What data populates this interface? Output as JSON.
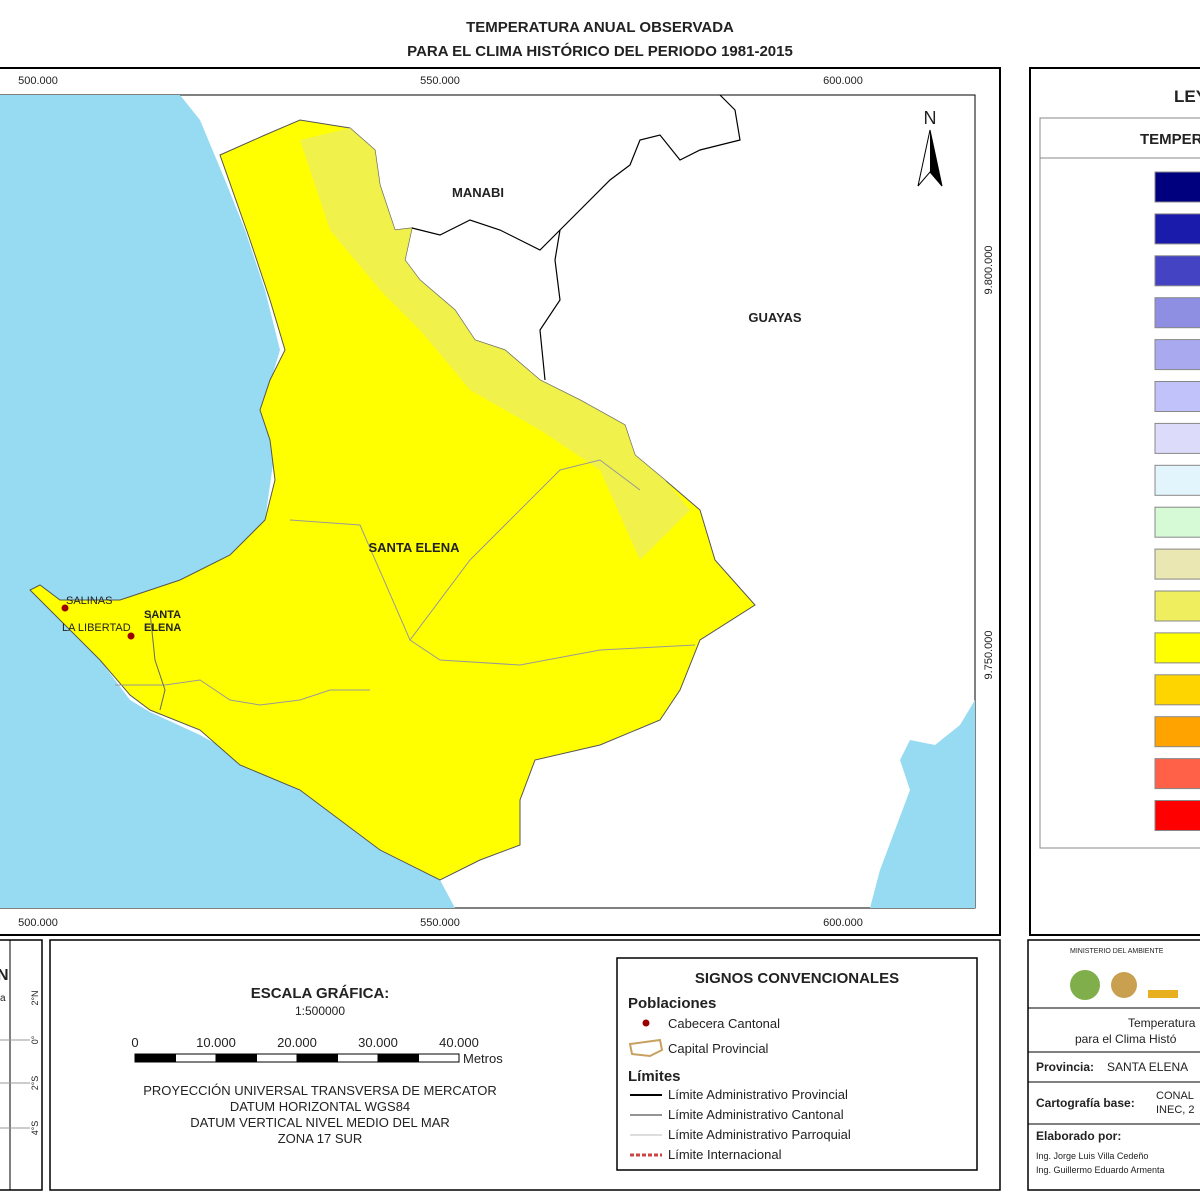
{
  "header": {
    "title_line1": "TEMPERATURA ANUAL OBSERVADA",
    "title_line2": "PARA EL CLIMA HISTÓRICO DEL PERIODO 1981-2015"
  },
  "map": {
    "x_labels": [
      "500.000",
      "550.000",
      "600.000"
    ],
    "y_labels": [
      "9.800.000",
      "9.750.000"
    ],
    "north": "N",
    "regions": [
      "MANABI",
      "GUAYAS",
      "SANTA ELENA"
    ],
    "towns": [
      "SALINAS",
      "LA LIBERTAD"
    ],
    "capital": [
      "SANTA",
      "ELENA"
    ]
  },
  "legend": {
    "title": "LEYENDA",
    "subtitle": "TEMPERATURA",
    "colors": [
      "#00007f",
      "#1a1aab",
      "#4343c4",
      "#8e8ee3",
      "#a9a9ef",
      "#c2c2fa",
      "#dcdcfa",
      "#e2f5fd",
      "#d6f9d6",
      "#ebe7b2",
      "#eeee5e",
      "#ffff00",
      "#ffd500",
      "#ffa300",
      "#ff6048",
      "#ff0000"
    ]
  },
  "location": {
    "north": "N",
    "lat_labels": [
      "2°N",
      "0°",
      "2°S",
      "4°S"
    ],
    "label": "a"
  },
  "scale": {
    "title": "ESCALA GRÁFICA:",
    "ratio": "1:500000",
    "ticks": [
      "0",
      "10.000",
      "20.000",
      "30.000",
      "40.000"
    ],
    "unit": "Metros",
    "projection": [
      "PROYECCIÓN UNIVERSAL TRANSVERSA DE MERCATOR",
      "DATUM HORIZONTAL WGS84",
      "DATUM VERTICAL NIVEL MEDIO DEL MAR",
      "ZONA 17 SUR"
    ]
  },
  "signs": {
    "title": "SIGNOS CONVENCIONALES",
    "populations": "Poblaciones",
    "cantonal": "Cabecera Cantonal",
    "provincial": "Capital Provincial",
    "limits": "Límites",
    "limit_items": [
      "Límite Administrativo Provincial",
      "Límite Administrativo Cantonal",
      "Límite Administrativo Parroquial",
      "Límite Internacional"
    ]
  },
  "info": {
    "ministry": "MINISTERIO DEL AMBIENTE",
    "desc_line1": "Temperatura",
    "desc_line2": "para el Clima Histó",
    "province_label": "Provincia:",
    "province": "SANTA ELENA",
    "carto_label": "Cartografía base:",
    "carto_line1": "CONAL",
    "carto_line2": "INEC, 2",
    "made_by": "Elaborado por:",
    "authors": [
      "Ing. Jorge Luis Villa Cedeño",
      "Ing. Guillermo Eduardo Armenta"
    ]
  }
}
